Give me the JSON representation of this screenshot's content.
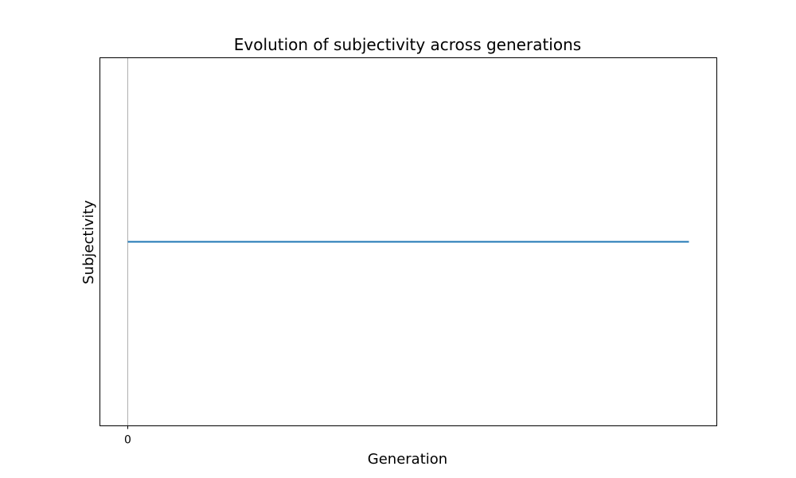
{
  "chart_data": {
    "type": "line",
    "title": "Evolution of subjectivity across generations",
    "xlabel": "Generation",
    "ylabel": "Subjectivity",
    "x_ticks": [
      0
    ],
    "x_tick_labels": [
      "0"
    ],
    "series": [
      {
        "x": [
          0,
          20
        ],
        "values": [
          0.5,
          0.5
        ],
        "color": "#1f77b4"
      }
    ],
    "grid": "x-only",
    "colors": {
      "line": "#1f77b4",
      "grid": "#b0b0b0",
      "frame": "#000000"
    }
  }
}
